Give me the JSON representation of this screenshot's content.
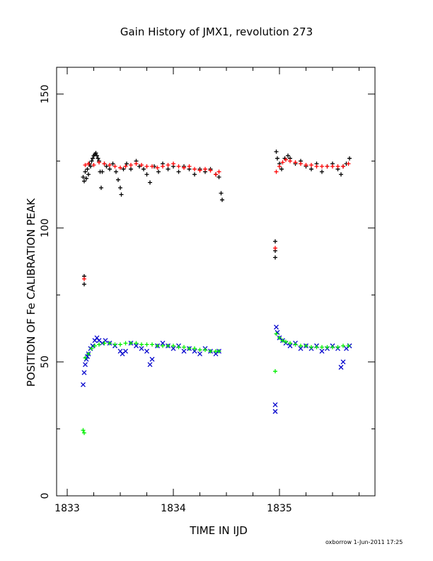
{
  "header": {
    "title": "Gain History of JMX1, revolution 273"
  },
  "footer": {
    "credit": "oxborrow   1-Jun-2011 17:25"
  },
  "chart_data": {
    "type": "scatter",
    "title": "Gain History of JMX1, revolution 273",
    "xlabel": "TIME IN IJD",
    "ylabel": "POSITION OF Fe CALIBRATION PEAK",
    "xlim": [
      1832.9,
      1835.9
    ],
    "ylim": [
      0,
      160
    ],
    "xticks": [
      1833,
      1834,
      1835
    ],
    "xtick_labels": [
      "1833",
      "1834",
      "1835"
    ],
    "yticks": [
      0,
      50,
      100,
      150
    ],
    "ytick_labels": [
      "0",
      "50",
      "100",
      "150"
    ],
    "grid": false,
    "colors": {
      "high_raw": "#000000",
      "high_fit": "#ff0000",
      "low_raw": "#0000cc",
      "low_fit": "#00ee00"
    },
    "series": [
      {
        "marker": "plus",
        "color": "#000000",
        "points": [
          [
            1833.15,
            119
          ],
          [
            1833.16,
            117.5
          ],
          [
            1833.17,
            121
          ],
          [
            1833.18,
            118.5
          ],
          [
            1833.19,
            122
          ],
          [
            1833.2,
            120
          ],
          [
            1833.21,
            124
          ],
          [
            1833.22,
            123
          ],
          [
            1833.23,
            125
          ],
          [
            1833.24,
            126
          ],
          [
            1833.25,
            127
          ],
          [
            1833.26,
            127.5
          ],
          [
            1833.27,
            128
          ],
          [
            1833.28,
            127
          ],
          [
            1833.29,
            126
          ],
          [
            1833.3,
            125
          ],
          [
            1833.31,
            121
          ],
          [
            1833.32,
            115
          ],
          [
            1833.33,
            121
          ],
          [
            1833.35,
            124
          ],
          [
            1833.37,
            123
          ],
          [
            1833.4,
            122
          ],
          [
            1833.43,
            124
          ],
          [
            1833.46,
            121
          ],
          [
            1833.48,
            118
          ],
          [
            1833.5,
            115
          ],
          [
            1833.51,
            112.5
          ],
          [
            1833.53,
            122
          ],
          [
            1833.56,
            124
          ],
          [
            1833.6,
            122
          ],
          [
            1833.65,
            125
          ],
          [
            1833.68,
            123
          ],
          [
            1833.72,
            122
          ],
          [
            1833.75,
            120
          ],
          [
            1833.78,
            117
          ],
          [
            1833.82,
            123
          ],
          [
            1833.86,
            121
          ],
          [
            1833.9,
            124
          ],
          [
            1833.95,
            122
          ],
          [
            1834.0,
            123
          ],
          [
            1834.05,
            121
          ],
          [
            1834.1,
            123
          ],
          [
            1834.15,
            122
          ],
          [
            1834.2,
            120
          ],
          [
            1834.25,
            122
          ],
          [
            1834.3,
            121
          ],
          [
            1834.35,
            122
          ],
          [
            1834.4,
            120
          ],
          [
            1834.43,
            119
          ],
          [
            1834.45,
            113
          ],
          [
            1834.46,
            110.5
          ],
          [
            1833.16,
            82
          ],
          [
            1833.16,
            79
          ],
          [
            1834.96,
            95
          ],
          [
            1834.96,
            91.5
          ],
          [
            1834.96,
            89
          ],
          [
            1834.97,
            128.5
          ],
          [
            1834.98,
            126
          ],
          [
            1835.0,
            124
          ],
          [
            1835.02,
            122
          ],
          [
            1835.05,
            126
          ],
          [
            1835.08,
            127
          ],
          [
            1835.1,
            126
          ],
          [
            1835.15,
            124
          ],
          [
            1835.2,
            125
          ],
          [
            1835.25,
            123
          ],
          [
            1835.3,
            122
          ],
          [
            1835.35,
            124
          ],
          [
            1835.4,
            121
          ],
          [
            1835.45,
            123
          ],
          [
            1835.5,
            124
          ],
          [
            1835.55,
            122
          ],
          [
            1835.58,
            120
          ],
          [
            1835.6,
            123
          ],
          [
            1835.63,
            124
          ],
          [
            1835.66,
            126
          ]
        ]
      },
      {
        "marker": "plus",
        "color": "#ff0000",
        "points": [
          [
            1833.17,
            123.5
          ],
          [
            1833.2,
            124
          ],
          [
            1833.25,
            123.5
          ],
          [
            1833.3,
            124.5
          ],
          [
            1833.35,
            124
          ],
          [
            1833.4,
            123.5
          ],
          [
            1833.45,
            123
          ],
          [
            1833.5,
            122.5
          ],
          [
            1833.55,
            123
          ],
          [
            1833.6,
            123.5
          ],
          [
            1833.65,
            124
          ],
          [
            1833.7,
            123.5
          ],
          [
            1833.75,
            123
          ],
          [
            1833.8,
            123
          ],
          [
            1833.85,
            122.5
          ],
          [
            1833.9,
            123
          ],
          [
            1833.95,
            123.5
          ],
          [
            1834.0,
            124
          ],
          [
            1834.05,
            123
          ],
          [
            1834.1,
            122.5
          ],
          [
            1834.15,
            123
          ],
          [
            1834.2,
            122
          ],
          [
            1834.25,
            121.5
          ],
          [
            1834.3,
            122
          ],
          [
            1834.35,
            121.5
          ],
          [
            1834.4,
            120
          ],
          [
            1834.43,
            121
          ],
          [
            1833.16,
            81
          ],
          [
            1834.96,
            92.5
          ],
          [
            1834.97,
            121
          ],
          [
            1835.0,
            123
          ],
          [
            1835.03,
            124.5
          ],
          [
            1835.06,
            125.5
          ],
          [
            1835.1,
            125
          ],
          [
            1835.15,
            124.5
          ],
          [
            1835.2,
            124
          ],
          [
            1835.25,
            123.5
          ],
          [
            1835.3,
            123.5
          ],
          [
            1835.35,
            123
          ],
          [
            1835.4,
            123
          ],
          [
            1835.45,
            123
          ],
          [
            1835.5,
            123
          ],
          [
            1835.55,
            123
          ],
          [
            1835.6,
            123
          ],
          [
            1835.65,
            124
          ]
        ]
      },
      {
        "marker": "cross",
        "color": "#0000cc",
        "points": [
          [
            1833.15,
            41.5
          ],
          [
            1833.16,
            46
          ],
          [
            1833.17,
            49
          ],
          [
            1833.18,
            51
          ],
          [
            1833.19,
            52
          ],
          [
            1833.2,
            53
          ],
          [
            1833.22,
            55
          ],
          [
            1833.24,
            56
          ],
          [
            1833.26,
            58
          ],
          [
            1833.28,
            59
          ],
          [
            1833.3,
            58
          ],
          [
            1833.33,
            57
          ],
          [
            1833.36,
            58
          ],
          [
            1833.4,
            57
          ],
          [
            1833.45,
            56
          ],
          [
            1833.5,
            54
          ],
          [
            1833.52,
            53
          ],
          [
            1833.55,
            54
          ],
          [
            1833.6,
            57
          ],
          [
            1833.65,
            56
          ],
          [
            1833.7,
            55
          ],
          [
            1833.75,
            54
          ],
          [
            1833.78,
            49
          ],
          [
            1833.8,
            51
          ],
          [
            1833.85,
            56
          ],
          [
            1833.9,
            57
          ],
          [
            1833.95,
            56
          ],
          [
            1834.0,
            55
          ],
          [
            1834.05,
            56
          ],
          [
            1834.1,
            54
          ],
          [
            1834.15,
            55
          ],
          [
            1834.2,
            54
          ],
          [
            1834.25,
            53
          ],
          [
            1834.3,
            55
          ],
          [
            1834.35,
            54
          ],
          [
            1834.4,
            53
          ],
          [
            1834.43,
            54
          ],
          [
            1834.96,
            34
          ],
          [
            1834.96,
            31.5
          ],
          [
            1834.97,
            63
          ],
          [
            1834.98,
            61
          ],
          [
            1835.0,
            59
          ],
          [
            1835.03,
            58
          ],
          [
            1835.06,
            57
          ],
          [
            1835.1,
            56
          ],
          [
            1835.15,
            57
          ],
          [
            1835.2,
            55
          ],
          [
            1835.25,
            56
          ],
          [
            1835.3,
            55
          ],
          [
            1835.35,
            56
          ],
          [
            1835.4,
            54
          ],
          [
            1835.45,
            55
          ],
          [
            1835.5,
            56
          ],
          [
            1835.55,
            55
          ],
          [
            1835.58,
            48
          ],
          [
            1835.6,
            50
          ],
          [
            1835.63,
            55
          ],
          [
            1835.66,
            56
          ]
        ]
      },
      {
        "marker": "plus",
        "color": "#00ee00",
        "points": [
          [
            1833.15,
            24.5
          ],
          [
            1833.16,
            23.5
          ],
          [
            1833.17,
            51.5
          ],
          [
            1833.2,
            53
          ],
          [
            1833.23,
            55
          ],
          [
            1833.26,
            56
          ],
          [
            1833.3,
            56.5
          ],
          [
            1833.35,
            57
          ],
          [
            1833.4,
            57
          ],
          [
            1833.45,
            56.5
          ],
          [
            1833.5,
            56.5
          ],
          [
            1833.55,
            57
          ],
          [
            1833.6,
            57
          ],
          [
            1833.65,
            57
          ],
          [
            1833.7,
            56.5
          ],
          [
            1833.75,
            56.5
          ],
          [
            1833.8,
            56.5
          ],
          [
            1833.85,
            56
          ],
          [
            1833.9,
            56
          ],
          [
            1833.95,
            56
          ],
          [
            1834.0,
            56
          ],
          [
            1834.05,
            55.5
          ],
          [
            1834.1,
            55.5
          ],
          [
            1834.15,
            55
          ],
          [
            1834.2,
            55
          ],
          [
            1834.25,
            54.5
          ],
          [
            1834.3,
            54.5
          ],
          [
            1834.35,
            54
          ],
          [
            1834.4,
            54
          ],
          [
            1834.43,
            54
          ],
          [
            1834.96,
            46.5
          ],
          [
            1834.97,
            60.5
          ],
          [
            1835.0,
            59
          ],
          [
            1835.03,
            58
          ],
          [
            1835.06,
            57.5
          ],
          [
            1835.1,
            57
          ],
          [
            1835.15,
            56.5
          ],
          [
            1835.2,
            56
          ],
          [
            1835.25,
            56
          ],
          [
            1835.3,
            55.5
          ],
          [
            1835.35,
            55.5
          ],
          [
            1835.4,
            55.5
          ],
          [
            1835.45,
            55.5
          ],
          [
            1835.5,
            55.5
          ],
          [
            1835.55,
            55.5
          ],
          [
            1835.6,
            56
          ],
          [
            1835.65,
            56
          ]
        ]
      }
    ]
  }
}
